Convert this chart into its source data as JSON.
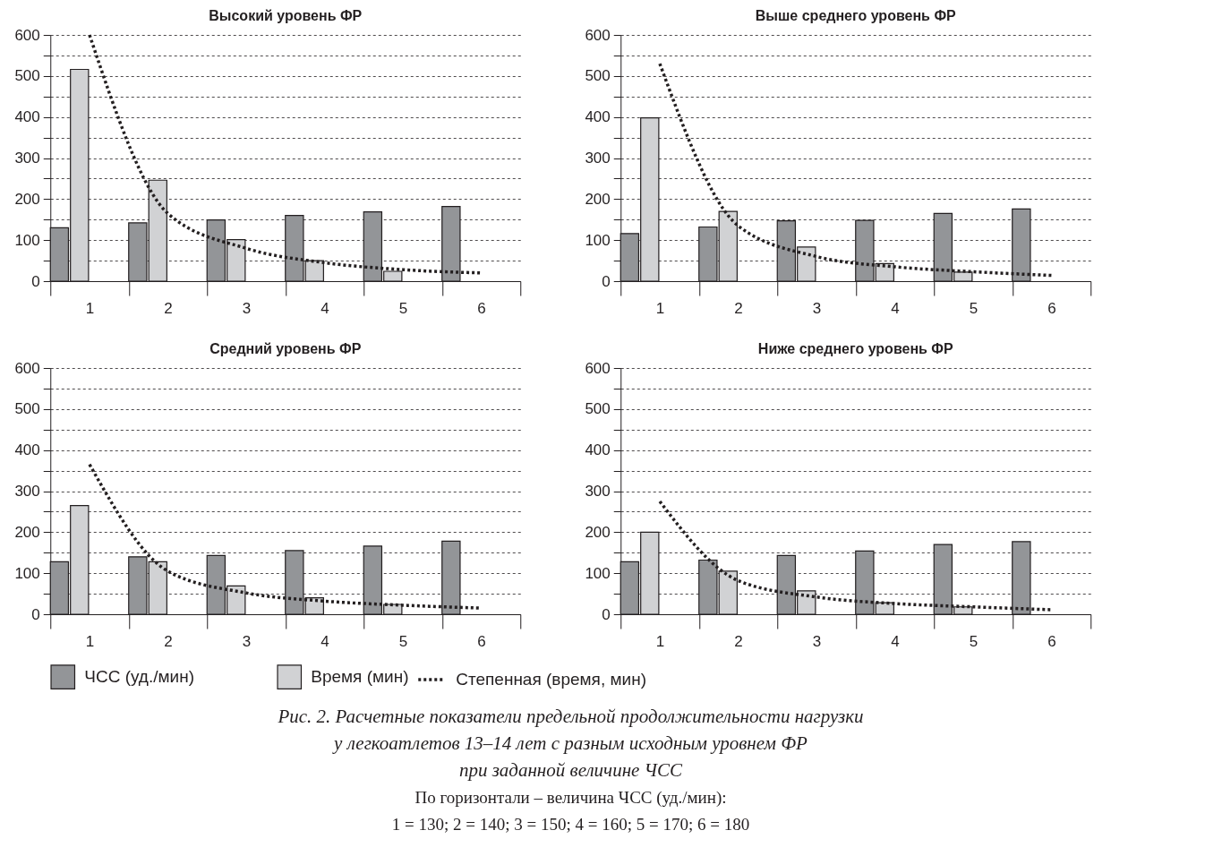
{
  "chart_data": [
    {
      "type": "bar",
      "title": "Высокий уровень ФР",
      "categories": [
        "1",
        "2",
        "3",
        "4",
        "5",
        "6"
      ],
      "ylim": [
        0,
        600
      ],
      "yticks": [
        0,
        {
          "value": 50,
          "label": null
        },
        100,
        {
          "value": 150,
          "label": null
        },
        200,
        {
          "value": 250,
          "label": null
        },
        300,
        {
          "value": 350,
          "label": null
        },
        400,
        {
          "value": 450,
          "label": null
        },
        500,
        {
          "value": 550,
          "label": null
        },
        600
      ],
      "grid": "y",
      "legend": "bottom",
      "series": [
        {
          "name": "ЧСС (уд./мин)",
          "color": "#939598",
          "values": [
            130,
            142,
            149,
            160,
            169,
            182
          ]
        },
        {
          "name": "Время (мин)",
          "color": "#d1d2d4",
          "values": [
            516,
            246,
            101,
            50,
            24,
            null
          ]
        },
        {
          "name": "Степенная (время, мин)",
          "color": "#231f20",
          "type": "line",
          "line_style": "dotted",
          "marker": "none",
          "values": [
            600,
            165,
            80,
            45,
            28,
            20
          ]
        }
      ]
    },
    {
      "type": "bar",
      "title": "Выше среднего уровень ФР",
      "categories": [
        "1",
        "2",
        "3",
        "4",
        "5",
        "6"
      ],
      "ylim": [
        0,
        600
      ],
      "yticks": [
        0,
        {
          "value": 50,
          "label": null
        },
        100,
        {
          "value": 150,
          "label": null
        },
        200,
        {
          "value": 250,
          "label": null
        },
        300,
        {
          "value": 350,
          "label": null
        },
        400,
        {
          "value": 450,
          "label": null
        },
        500,
        {
          "value": 550,
          "label": null
        },
        600
      ],
      "grid": "y",
      "legend": "bottom",
      "series": [
        {
          "name": "ЧСС (уд./мин)",
          "color": "#939598",
          "values": [
            116,
            132,
            147,
            148,
            165,
            176
          ]
        },
        {
          "name": "Время (мин)",
          "color": "#d1d2d4",
          "values": [
            398,
            170,
            83,
            43,
            22,
            null
          ]
        },
        {
          "name": "Степенная (время, мин)",
          "color": "#231f20",
          "type": "line",
          "line_style": "dotted",
          "marker": "none",
          "values": [
            530,
            135,
            60,
            35,
            23,
            14
          ]
        }
      ]
    },
    {
      "type": "bar",
      "title": "Средний уровень ФР",
      "categories": [
        "1",
        "2",
        "3",
        "4",
        "5",
        "6"
      ],
      "ylim": [
        0,
        600
      ],
      "yticks": [
        0,
        {
          "value": 50,
          "label": null
        },
        100,
        {
          "value": 150,
          "label": null
        },
        200,
        {
          "value": 250,
          "label": null
        },
        300,
        {
          "value": 350,
          "label": null
        },
        400,
        {
          "value": 450,
          "label": null
        },
        500,
        {
          "value": 550,
          "label": null
        },
        600
      ],
      "grid": "y",
      "legend": "bottom",
      "series": [
        {
          "name": "ЧСС (уд./мин)",
          "color": "#939598",
          "values": [
            128,
            140,
            143,
            155,
            166,
            178
          ]
        },
        {
          "name": "Время (мин)",
          "color": "#d1d2d4",
          "values": [
            265,
            128,
            69,
            40,
            24,
            null
          ]
        },
        {
          "name": "Степенная (время, мин)",
          "color": "#231f20",
          "type": "line",
          "line_style": "dotted",
          "marker": "none",
          "values": [
            365,
            105,
            52,
            32,
            22,
            15
          ]
        }
      ]
    },
    {
      "type": "bar",
      "title": "Ниже среднего уровень ФР",
      "categories": [
        "1",
        "2",
        "3",
        "4",
        "5",
        "6"
      ],
      "ylim": [
        0,
        600
      ],
      "yticks": [
        0,
        {
          "value": 50,
          "label": null
        },
        100,
        {
          "value": 150,
          "label": null
        },
        200,
        {
          "value": 250,
          "label": null
        },
        300,
        {
          "value": 350,
          "label": null
        },
        400,
        {
          "value": 450,
          "label": null
        },
        500,
        {
          "value": 550,
          "label": null
        },
        600
      ],
      "grid": "y",
      "legend": "bottom",
      "annotations": [
        "Рис. 2. Расчетные показатели предельной продолжительности нагрузки",
        "у легкоатлетов 13–14 лет с разным исходным уровнем ФР",
        "при заданной величине ЧСС",
        "По горизонтали – величина ЧСС (уд./мин):",
        "1 = 130; 2 = 140; 3 = 150; 4 = 160; 5 = 170; 6 = 180"
      ],
      "series": [
        {
          "name": "ЧСС (уд./мин)",
          "color": "#939598",
          "values": [
            128,
            132,
            143,
            154,
            170,
            177
          ]
        },
        {
          "name": "Время (мин)",
          "color": "#d1d2d4",
          "values": [
            200,
            105,
            57,
            28,
            18,
            null
          ]
        },
        {
          "name": "Степенная (время, мин)",
          "color": "#231f20",
          "type": "line",
          "line_style": "dotted",
          "marker": "none",
          "values": [
            275,
            82,
            42,
            26,
            18,
            11
          ]
        }
      ]
    }
  ]
}
